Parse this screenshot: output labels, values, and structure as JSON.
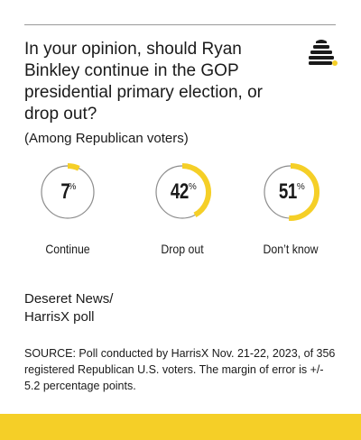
{
  "title": "In your opinion, should Ryan Binkley continue in the GOP presidential primary election, or drop out?",
  "subtitle": "(Among Republican voters)",
  "source_title_line1": "Deseret News/",
  "source_title_line2": "HarrisX poll",
  "note": "SOURCE: Poll conducted by HarrisX Nov. 21-22, 2023, of 356 registered Republican U.S. voters. The margin of error is +/- 5.2 percentage points.",
  "logo_icon": "beehive-icon",
  "colors": {
    "accent": "#f5cf27",
    "ring": "#8c8c8c",
    "text": "#1a1a1a"
  },
  "chart_data": {
    "type": "pie",
    "categories": [
      "Continue",
      "Drop out",
      "Don’t know"
    ],
    "values": [
      7,
      42,
      51
    ],
    "value_labels": [
      "7",
      "42",
      "51"
    ],
    "percent_symbol": "%"
  }
}
